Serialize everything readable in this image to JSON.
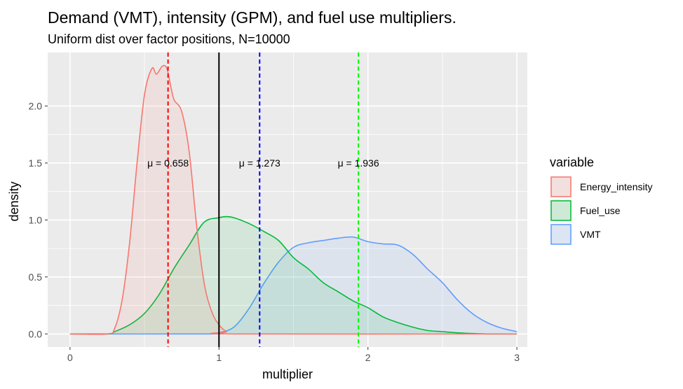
{
  "chart_data": {
    "type": "area",
    "title": "Demand (VMT), intensity (GPM), and fuel use multipliers.",
    "subtitle": "Uniform dist over factor positions, N=10000",
    "xlabel": "multiplier",
    "ylabel": "density",
    "xlim": [
      -0.15,
      3.07
    ],
    "ylim": [
      -0.115,
      2.47
    ],
    "x_ticks": [
      0,
      1,
      2,
      3
    ],
    "x_tick_labels": [
      "0",
      "1",
      "2",
      "3"
    ],
    "y_ticks": [
      0.0,
      0.5,
      1.0,
      1.5,
      2.0
    ],
    "y_tick_labels": [
      "0.0",
      "0.5",
      "1.0",
      "1.5",
      "2.0"
    ],
    "grid": true,
    "legend": {
      "title": "variable",
      "position": "right",
      "entries": [
        "Energy_intensity",
        "Fuel_use",
        "VMT"
      ]
    },
    "reference_line": {
      "x": 1,
      "color": "#000000"
    },
    "series": [
      {
        "name": "Energy_intensity",
        "color": "#F8766D",
        "mean": 0.658,
        "mean_label": "μ = 0.658",
        "x": [
          0,
          0.25,
          0.3,
          0.35,
          0.4,
          0.45,
          0.5,
          0.55,
          0.58,
          0.62,
          0.65,
          0.68,
          0.7,
          0.75,
          0.8,
          0.85,
          0.9,
          0.95,
          1.0,
          1.05,
          1.1,
          3.0
        ],
        "y": [
          0,
          0,
          0.05,
          0.3,
          0.8,
          1.5,
          2.1,
          2.33,
          2.28,
          2.35,
          2.33,
          2.15,
          2.05,
          1.95,
          1.6,
          0.95,
          0.45,
          0.2,
          0.08,
          0.02,
          0,
          0
        ]
      },
      {
        "name": "Fuel_use",
        "color": "#00BA38",
        "mean": 1.273,
        "mean_label": "μ = 1.273",
        "x": [
          0,
          0.25,
          0.3,
          0.4,
          0.5,
          0.6,
          0.7,
          0.8,
          0.9,
          1.0,
          1.05,
          1.1,
          1.2,
          1.3,
          1.4,
          1.5,
          1.6,
          1.7,
          1.8,
          1.9,
          2.0,
          2.1,
          2.2,
          2.3,
          2.4,
          2.5,
          2.6,
          2.8,
          3.0
        ],
        "y": [
          0,
          0,
          0.02,
          0.08,
          0.18,
          0.35,
          0.58,
          0.78,
          0.98,
          1.02,
          1.03,
          1.02,
          0.97,
          0.9,
          0.82,
          0.67,
          0.57,
          0.45,
          0.37,
          0.29,
          0.23,
          0.15,
          0.1,
          0.06,
          0.03,
          0.02,
          0.01,
          0,
          0
        ]
      },
      {
        "name": "VMT",
        "color": "#619CFF",
        "mean": 1.936,
        "mean_label": "μ = 1.936",
        "x": [
          0,
          0.95,
          1.0,
          1.1,
          1.2,
          1.3,
          1.4,
          1.5,
          1.6,
          1.7,
          1.8,
          1.9,
          2.0,
          2.1,
          2.2,
          2.3,
          2.4,
          2.5,
          2.6,
          2.7,
          2.8,
          2.9,
          3.0
        ],
        "y": [
          0,
          0,
          0.01,
          0.06,
          0.22,
          0.44,
          0.63,
          0.76,
          0.8,
          0.82,
          0.84,
          0.85,
          0.81,
          0.79,
          0.78,
          0.7,
          0.57,
          0.45,
          0.3,
          0.18,
          0.1,
          0.05,
          0.02
        ]
      }
    ],
    "annotations": [
      {
        "text": "μ = 0.658",
        "x": 0.658,
        "y": 1.5
      },
      {
        "text": "μ = 1.273",
        "x": 1.273,
        "y": 1.5
      },
      {
        "text": "μ = 1.936",
        "x": 1.936,
        "y": 1.5
      }
    ],
    "mean_line_colors": [
      "#FF0000",
      "#0000FF",
      "#00FF00"
    ]
  }
}
